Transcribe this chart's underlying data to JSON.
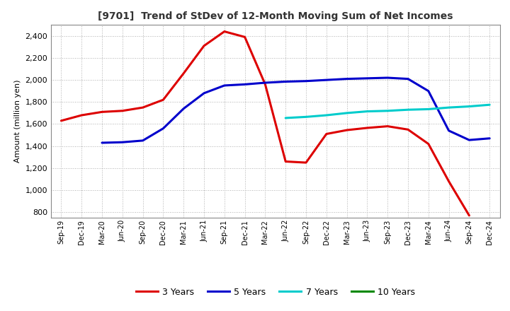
{
  "title": "[9701]  Trend of StDev of 12-Month Moving Sum of Net Incomes",
  "ylabel": "Amount (million yen)",
  "background_color": "#ffffff",
  "grid_color": "#b0b0b0",
  "ylim": [
    750,
    2500
  ],
  "yticks": [
    800,
    1000,
    1200,
    1400,
    1600,
    1800,
    2000,
    2200,
    2400
  ],
  "x_labels": [
    "Sep-19",
    "Dec-19",
    "Mar-20",
    "Jun-20",
    "Sep-20",
    "Dec-20",
    "Mar-21",
    "Jun-21",
    "Sep-21",
    "Dec-21",
    "Mar-22",
    "Jun-22",
    "Sep-22",
    "Dec-22",
    "Mar-23",
    "Jun-23",
    "Sep-23",
    "Dec-23",
    "Mar-24",
    "Jun-24",
    "Sep-24",
    "Dec-24"
  ],
  "series": {
    "3 Years": {
      "color": "#dd0000",
      "data": [
        1630,
        1680,
        1710,
        1720,
        1750,
        1820,
        2060,
        2310,
        2440,
        2390,
        1960,
        1260,
        1250,
        1510,
        1545,
        1565,
        1580,
        1550,
        1420,
        1080,
        770,
        null
      ]
    },
    "5 Years": {
      "color": "#0000cc",
      "data": [
        null,
        null,
        1430,
        1435,
        1450,
        1560,
        1740,
        1880,
        1950,
        1960,
        1975,
        1985,
        1990,
        2000,
        2010,
        2015,
        2020,
        2010,
        1900,
        1540,
        1455,
        1470
      ]
    },
    "7 Years": {
      "color": "#00cccc",
      "data": [
        null,
        null,
        null,
        null,
        null,
        null,
        null,
        null,
        null,
        null,
        null,
        1655,
        1665,
        1680,
        1700,
        1715,
        1720,
        1730,
        1735,
        1750,
        1760,
        1775
      ]
    },
    "10 Years": {
      "color": "#008800",
      "data": [
        null,
        null,
        null,
        null,
        null,
        null,
        null,
        null,
        null,
        null,
        null,
        null,
        null,
        null,
        null,
        null,
        null,
        null,
        null,
        null,
        null,
        null
      ]
    }
  },
  "legend_order": [
    "3 Years",
    "5 Years",
    "7 Years",
    "10 Years"
  ]
}
